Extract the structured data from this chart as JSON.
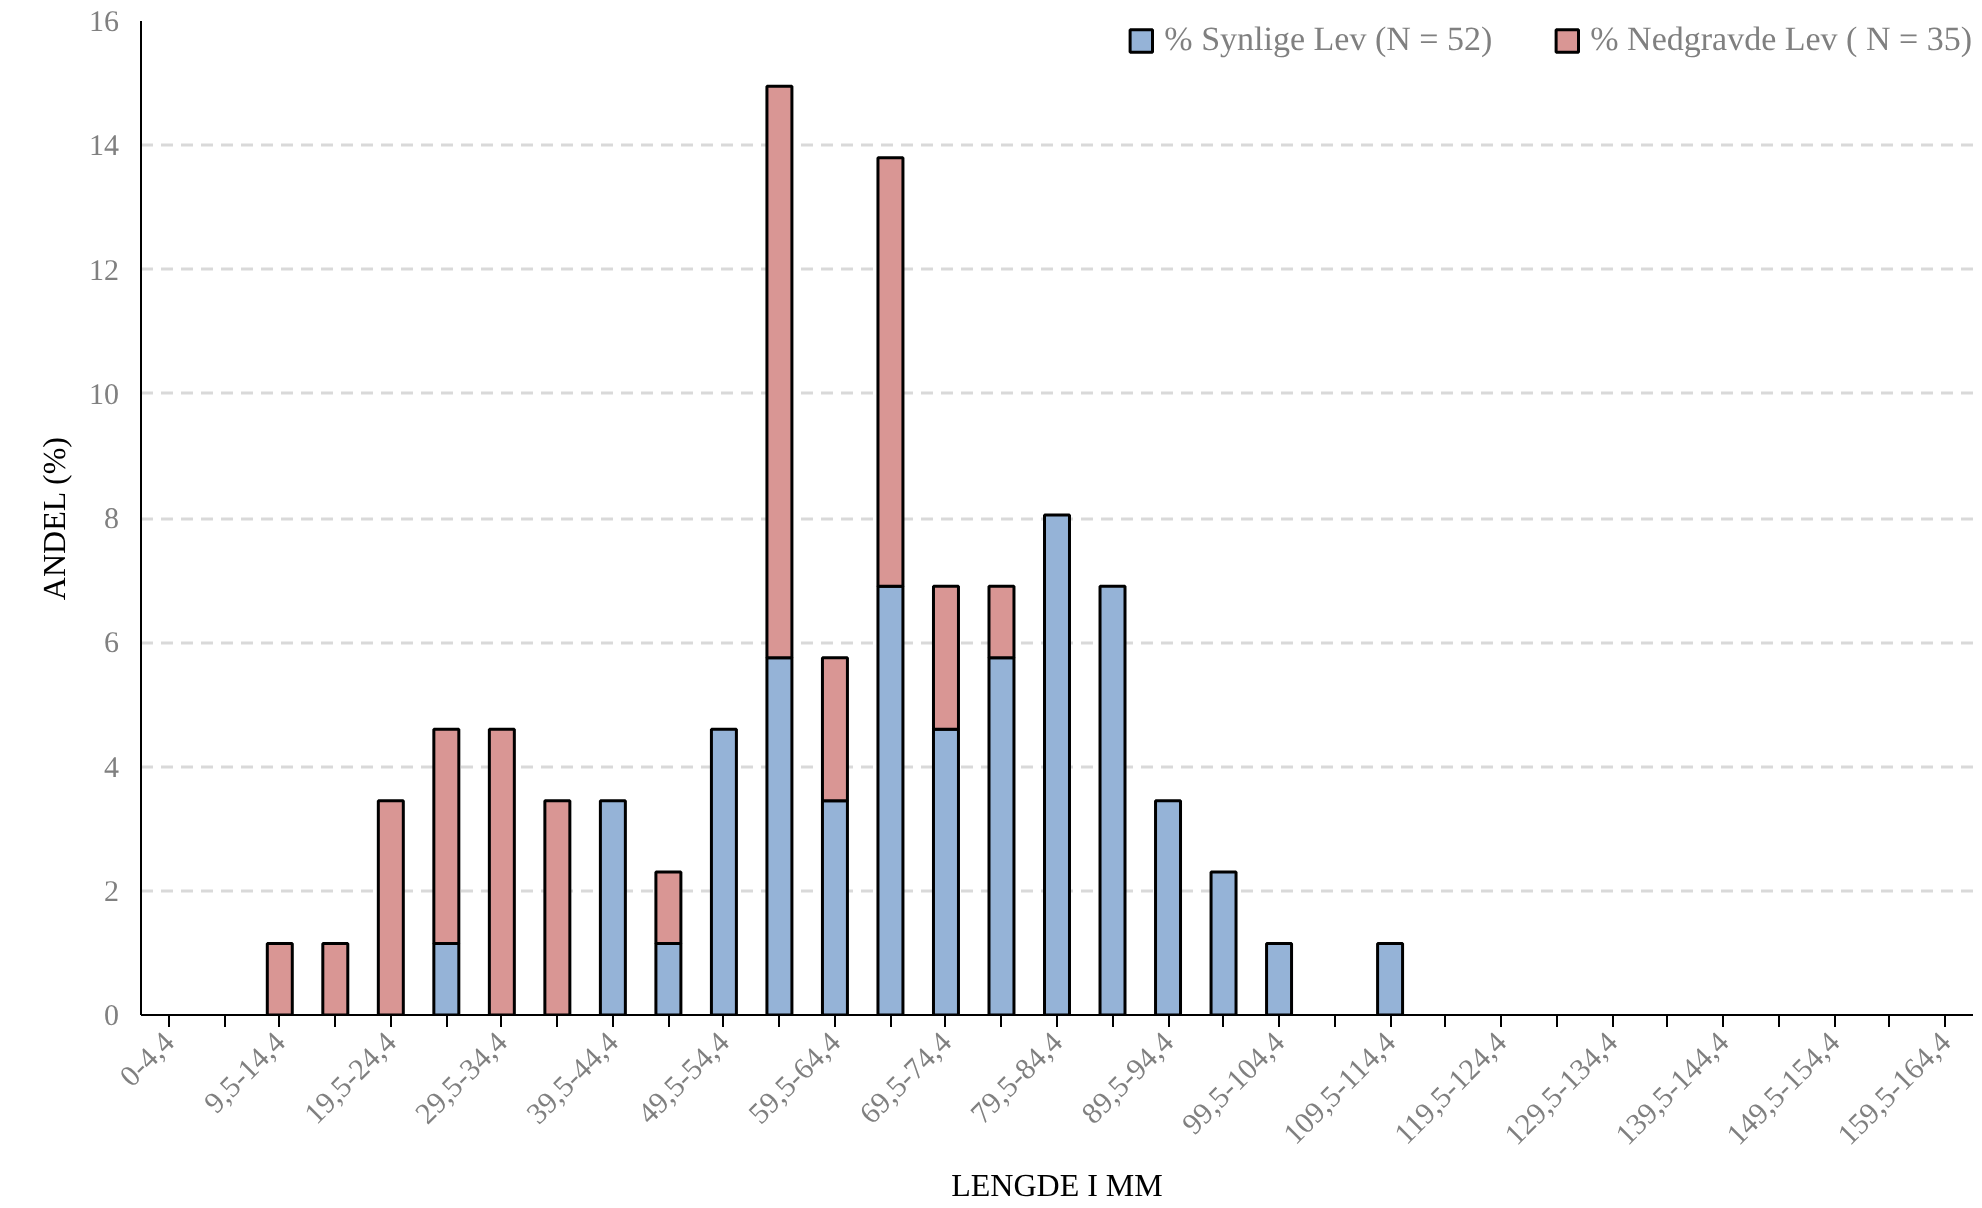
{
  "chart_data": {
    "type": "bar",
    "stacked": true,
    "xlabel": "LENGDE I MM",
    "ylabel": "ANDEL (%)",
    "categories": [
      "0-4,4",
      null,
      "9,5-14,4",
      null,
      "19,5-24,4",
      null,
      "29,5-34,4",
      null,
      "39,5-44,4",
      null,
      "49,5-54,4",
      null,
      "59,5-64,4",
      null,
      "69,5-74,4",
      null,
      "79,5-84,4",
      null,
      "89,5-94,4",
      null,
      "99,5-104,4",
      null,
      "109,5-114,4",
      null,
      "119,5-124,4",
      null,
      "129,5-134,4",
      null,
      "139,5-144,4",
      null,
      "149,5-154,4",
      null,
      "159,5-164,4"
    ],
    "series": [
      {
        "name": "% Synlige Lev (N = 52)",
        "color": "#95b3d7",
        "values": [
          null,
          null,
          null,
          null,
          null,
          1.15,
          null,
          null,
          3.45,
          1.15,
          4.6,
          5.75,
          3.45,
          6.9,
          4.6,
          5.75,
          8.05,
          6.9,
          3.45,
          2.3,
          1.15,
          null,
          1.15,
          null,
          null,
          null,
          null,
          null,
          null,
          null,
          null,
          null,
          null
        ]
      },
      {
        "name": "% Nedgravde Lev ( N = 35)",
        "color": "#d99694",
        "values": [
          null,
          null,
          1.15,
          1.15,
          3.45,
          3.45,
          4.6,
          3.45,
          null,
          1.15,
          null,
          9.2,
          2.3,
          6.9,
          2.3,
          1.15,
          null,
          null,
          null,
          null,
          null,
          null,
          null,
          null,
          null,
          null,
          null,
          null,
          null,
          null,
          null,
          null,
          null
        ]
      }
    ],
    "ylim": [
      0,
      16
    ],
    "yticks": [
      0,
      2,
      4,
      6,
      8,
      10,
      12,
      14,
      16
    ],
    "grid": "y",
    "legend": "top right"
  }
}
